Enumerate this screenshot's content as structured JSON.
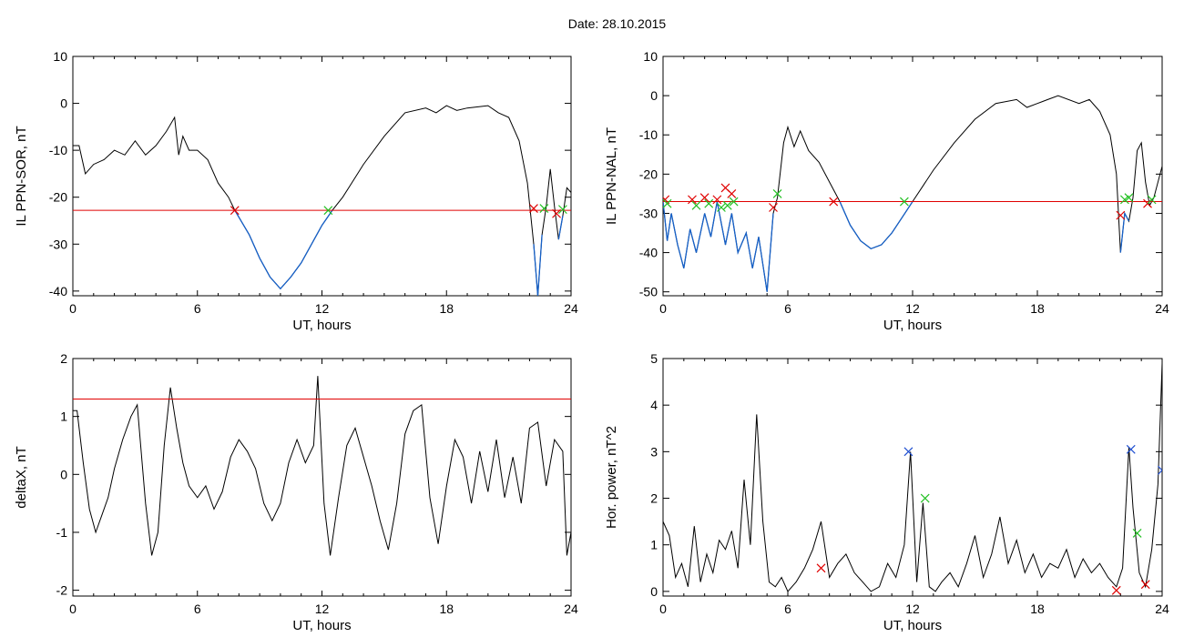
{
  "figure": {
    "title": "Date:  28.10.2015"
  },
  "colors": {
    "data": "#000000",
    "threshold": "#e00000",
    "highlight": "#1560c8",
    "marker_red": "#e00000",
    "marker_green": "#22c022",
    "marker_blue": "#1f4fd0"
  },
  "chart_data": [
    {
      "type": "line",
      "xlabel": "UT, hours",
      "ylabel": "IL PPN-SOR, nT",
      "xlim": [
        0,
        24
      ],
      "ylim": [
        -41,
        10
      ],
      "xticks": [
        "0",
        "6",
        "12",
        "18",
        "24"
      ],
      "yticks": [
        "-40",
        "-30",
        "-20",
        "-10",
        "0",
        "10"
      ],
      "threshold": -22.8,
      "series": [
        {
          "values_x": [
            0,
            0.3,
            0.6,
            1,
            1.5,
            2,
            2.5,
            3,
            3.5,
            4,
            4.5,
            4.9,
            5.1,
            5.3,
            5.6,
            6,
            6.5,
            7,
            7.5,
            7.8,
            8.5,
            9,
            9.5,
            10,
            10.5,
            11,
            11.5,
            12,
            12.5,
            13,
            14,
            15,
            16,
            17,
            17.5,
            18,
            18.5,
            19,
            20,
            20.5,
            21,
            21.5,
            21.9,
            22.2,
            22.4,
            22.6,
            22.8,
            23.0,
            23.2,
            23.4,
            23.6,
            23.8,
            24
          ],
          "values": [
            -9,
            -9,
            -15,
            -13,
            -12,
            -10,
            -11,
            -8,
            -11,
            -9,
            -6,
            -3,
            -11,
            -7,
            -10,
            -10,
            -12,
            -17,
            -20,
            -22.8,
            -28,
            -33,
            -37,
            -39.5,
            -37,
            -34,
            -30,
            -26,
            -22.8,
            -20,
            -13,
            -7,
            -2,
            -1,
            -2,
            -0.5,
            -1.5,
            -1,
            -0.5,
            -2,
            -3,
            -8,
            -17,
            -30,
            -41,
            -28,
            -22,
            -14,
            -22,
            -29,
            -24,
            -18,
            -19
          ]
        }
      ],
      "markers": [
        {
          "x": 7.8,
          "y": -22.8,
          "color": "red"
        },
        {
          "x": 12.3,
          "y": -22.8,
          "color": "green"
        },
        {
          "x": 22.2,
          "y": -22.4,
          "color": "red"
        },
        {
          "x": 22.7,
          "y": -22.4,
          "color": "green"
        },
        {
          "x": 23.3,
          "y": -23.5,
          "color": "red"
        },
        {
          "x": 23.6,
          "y": -22.6,
          "color": "green"
        }
      ]
    },
    {
      "type": "line",
      "xlabel": "UT, hours",
      "ylabel": "IL PPN-NAL, nT",
      "xlim": [
        0,
        24
      ],
      "ylim": [
        -51,
        10
      ],
      "xticks": [
        "0",
        "6",
        "12",
        "18",
        "24"
      ],
      "yticks": [
        "-50",
        "-40",
        "-30",
        "-20",
        "-10",
        "0",
        "10"
      ],
      "threshold": -27,
      "series": [
        {
          "values_x": [
            0,
            0.2,
            0.4,
            0.7,
            1,
            1.3,
            1.6,
            2,
            2.3,
            2.6,
            3,
            3.3,
            3.6,
            4,
            4.3,
            4.6,
            5,
            5.3,
            5.5,
            5.8,
            6,
            6.3,
            6.6,
            7,
            7.5,
            8,
            8.5,
            9,
            9.5,
            10,
            10.5,
            11,
            11.5,
            12,
            12.5,
            13,
            14,
            15,
            16,
            17,
            17.5,
            18,
            18.5,
            19,
            20,
            20.5,
            21,
            21.5,
            21.8,
            22.0,
            22.2,
            22.4,
            22.6,
            22.8,
            23,
            23.2,
            23.4,
            23.6,
            24
          ],
          "values": [
            -27,
            -37,
            -30,
            -38,
            -44,
            -34,
            -40,
            -30,
            -36,
            -27,
            -38,
            -30,
            -40,
            -35,
            -44,
            -36,
            -50,
            -30,
            -26,
            -12,
            -8,
            -13,
            -9,
            -14,
            -17,
            -22,
            -27,
            -33,
            -37,
            -39,
            -38,
            -35,
            -31,
            -27,
            -23,
            -19,
            -12,
            -6,
            -2,
            -1,
            -3,
            -2,
            -1,
            0,
            -2,
            -1,
            -4,
            -10,
            -20,
            -40,
            -30,
            -32,
            -26,
            -14,
            -12,
            -22,
            -28,
            -26,
            -18
          ]
        }
      ],
      "markers": [
        {
          "x": 0.1,
          "y": -26.5,
          "color": "red"
        },
        {
          "x": 0.2,
          "y": -27.5,
          "color": "green"
        },
        {
          "x": 1.4,
          "y": -26.5,
          "color": "red"
        },
        {
          "x": 1.6,
          "y": -28,
          "color": "green"
        },
        {
          "x": 2.0,
          "y": -26,
          "color": "red"
        },
        {
          "x": 2.2,
          "y": -27.5,
          "color": "green"
        },
        {
          "x": 2.6,
          "y": -26.5,
          "color": "red"
        },
        {
          "x": 2.8,
          "y": -28.5,
          "color": "green"
        },
        {
          "x": 3.0,
          "y": -23.5,
          "color": "red"
        },
        {
          "x": 3.1,
          "y": -28,
          "color": "green"
        },
        {
          "x": 3.3,
          "y": -25,
          "color": "red"
        },
        {
          "x": 3.4,
          "y": -27,
          "color": "green"
        },
        {
          "x": 5.3,
          "y": -28.5,
          "color": "red"
        },
        {
          "x": 5.5,
          "y": -25,
          "color": "green"
        },
        {
          "x": 8.2,
          "y": -27,
          "color": "red"
        },
        {
          "x": 11.6,
          "y": -27,
          "color": "green"
        },
        {
          "x": 22.0,
          "y": -30.5,
          "color": "red"
        },
        {
          "x": 22.2,
          "y": -26.5,
          "color": "green"
        },
        {
          "x": 22.4,
          "y": -26,
          "color": "green"
        },
        {
          "x": 23.3,
          "y": -27.5,
          "color": "red"
        },
        {
          "x": 23.5,
          "y": -26.5,
          "color": "green"
        }
      ]
    },
    {
      "type": "line",
      "xlabel": "UT, hours",
      "ylabel": "deltaX, nT",
      "xlim": [
        0,
        24
      ],
      "ylim": [
        -2.1,
        2
      ],
      "xticks": [
        "0",
        "6",
        "12",
        "18",
        "24"
      ],
      "yticks": [
        "-2",
        "-1",
        "0",
        "1",
        "2"
      ],
      "threshold": 1.3,
      "series": [
        {
          "values_x": [
            0,
            0.2,
            0.5,
            0.8,
            1.1,
            1.4,
            1.7,
            2,
            2.4,
            2.8,
            3.1,
            3.5,
            3.8,
            4.1,
            4.4,
            4.7,
            5,
            5.3,
            5.6,
            6,
            6.4,
            6.8,
            7.2,
            7.6,
            8,
            8.4,
            8.8,
            9.2,
            9.6,
            10,
            10.4,
            10.8,
            11.2,
            11.6,
            11.8,
            12.1,
            12.4,
            12.8,
            13.2,
            13.6,
            14,
            14.4,
            14.8,
            15.2,
            15.6,
            16,
            16.4,
            16.8,
            17.2,
            17.6,
            18,
            18.4,
            18.8,
            19.2,
            19.6,
            20,
            20.4,
            20.8,
            21.2,
            21.6,
            22,
            22.4,
            22.8,
            23.2,
            23.6,
            23.8,
            24
          ],
          "values": [
            1.1,
            1.1,
            0.2,
            -0.6,
            -1.0,
            -0.7,
            -0.4,
            0.1,
            0.6,
            1.0,
            1.2,
            -0.5,
            -1.4,
            -1.0,
            0.5,
            1.5,
            0.8,
            0.2,
            -0.2,
            -0.4,
            -0.2,
            -0.6,
            -0.3,
            0.3,
            0.6,
            0.4,
            0.1,
            -0.5,
            -0.8,
            -0.5,
            0.2,
            0.6,
            0.2,
            0.5,
            1.7,
            -0.5,
            -1.4,
            -0.4,
            0.5,
            0.8,
            0.3,
            -0.2,
            -0.8,
            -1.3,
            -0.5,
            0.7,
            1.1,
            1.2,
            -0.4,
            -1.2,
            -0.2,
            0.6,
            0.3,
            -0.5,
            0.4,
            -0.3,
            0.6,
            -0.4,
            0.3,
            -0.5,
            0.8,
            0.9,
            -0.2,
            0.6,
            0.4,
            -1.4,
            -1.0
          ]
        }
      ],
      "markers": []
    },
    {
      "type": "line",
      "xlabel": "UT, hours",
      "ylabel": "Hor. power, nT^2",
      "xlim": [
        0,
        24
      ],
      "ylim": [
        -0.1,
        5
      ],
      "xticks": [
        "0",
        "6",
        "12",
        "18",
        "24"
      ],
      "yticks": [
        "0",
        "1",
        "2",
        "3",
        "4",
        "5"
      ],
      "threshold": null,
      "series": [
        {
          "values_x": [
            0,
            0.3,
            0.6,
            0.9,
            1.2,
            1.5,
            1.8,
            2.1,
            2.4,
            2.7,
            3,
            3.3,
            3.6,
            3.9,
            4.2,
            4.5,
            4.8,
            5.1,
            5.4,
            5.7,
            6,
            6.4,
            6.8,
            7.2,
            7.6,
            8,
            8.4,
            8.8,
            9.2,
            9.6,
            10,
            10.4,
            10.8,
            11.2,
            11.6,
            11.9,
            12.2,
            12.5,
            12.8,
            13.1,
            13.4,
            13.8,
            14.2,
            14.6,
            15,
            15.4,
            15.8,
            16.2,
            16.6,
            17,
            17.4,
            17.8,
            18.2,
            18.6,
            19,
            19.4,
            19.8,
            20.2,
            20.6,
            21,
            21.4,
            21.8,
            22.1,
            22.4,
            22.6,
            22.9,
            23.2,
            23.5,
            23.8,
            24
          ],
          "values": [
            1.5,
            1.2,
            0.3,
            0.6,
            0.1,
            1.4,
            0.2,
            0.8,
            0.4,
            1.1,
            0.9,
            1.3,
            0.5,
            2.4,
            1.0,
            3.8,
            1.5,
            0.2,
            0.1,
            0.3,
            0.0,
            0.2,
            0.5,
            0.9,
            1.5,
            0.3,
            0.6,
            0.8,
            0.4,
            0.2,
            0.0,
            0.1,
            0.6,
            0.3,
            1.0,
            3.0,
            0.2,
            1.9,
            0.1,
            0.0,
            0.2,
            0.4,
            0.1,
            0.6,
            1.2,
            0.3,
            0.8,
            1.6,
            0.6,
            1.1,
            0.4,
            0.8,
            0.3,
            0.6,
            0.5,
            0.9,
            0.3,
            0.7,
            0.4,
            0.6,
            0.3,
            0.1,
            0.5,
            3.1,
            1.8,
            0.4,
            0.1,
            0.9,
            2.3,
            4.9
          ]
        }
      ],
      "markers": [
        {
          "x": 7.6,
          "y": 0.5,
          "color": "red"
        },
        {
          "x": 11.8,
          "y": 3.0,
          "color": "blue"
        },
        {
          "x": 12.6,
          "y": 2.0,
          "color": "green"
        },
        {
          "x": 21.8,
          "y": 0.02,
          "color": "red"
        },
        {
          "x": 22.5,
          "y": 3.05,
          "color": "blue"
        },
        {
          "x": 22.8,
          "y": 1.25,
          "color": "green"
        },
        {
          "x": 23.2,
          "y": 0.15,
          "color": "red"
        },
        {
          "x": 24.0,
          "y": 2.6,
          "color": "blue"
        }
      ]
    }
  ]
}
